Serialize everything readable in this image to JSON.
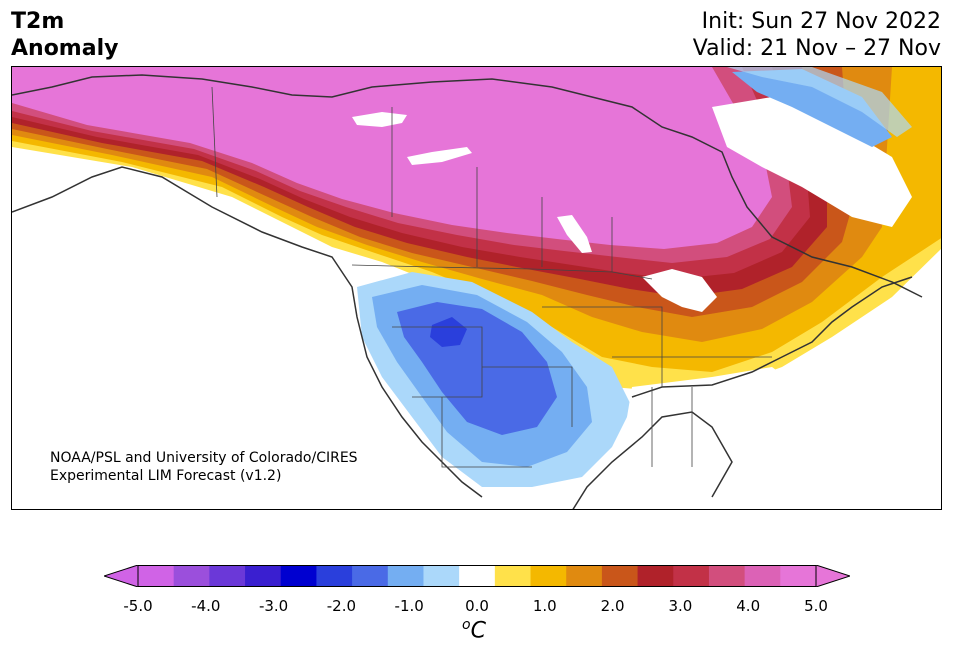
{
  "title_left": [
    "T2m",
    "Anomaly"
  ],
  "title_right": {
    "init": "Init: Sun 27 Nov 2022",
    "valid": "Valid: 21 Nov – 27 Nov"
  },
  "credit": {
    "line1": "NOAA/PSL and University of Colorado/CIRES",
    "line2": "Experimental LIM Forecast (v1.2)"
  },
  "colorbar": {
    "levels": [
      -5.0,
      -4.5,
      -4.0,
      -3.5,
      -3.0,
      -2.5,
      -2.0,
      -1.5,
      -1.0,
      -0.5,
      0.5,
      1.0,
      1.5,
      2.0,
      2.5,
      3.0,
      3.5,
      4.0,
      4.5,
      5.0
    ],
    "colors": [
      "#d063e6",
      "#9b4fdc",
      "#6b38d8",
      "#3a1fd0",
      "#0000d0",
      "#2a3fdc",
      "#4a6ae6",
      "#74aef2",
      "#abd8fa",
      "#ffffff",
      "#ffe14a",
      "#f4b800",
      "#e08a10",
      "#c9561a",
      "#b0222a",
      "#c23147",
      "#d24e7d",
      "#dc62b6",
      "#e675d8"
    ],
    "extend_min_color": "#d063e6",
    "extend_max_color": "#e675d8",
    "tick_labels": [
      "-5.0",
      "-4.0",
      "-3.0",
      "-2.0",
      "-1.0",
      "0.0",
      "1.0",
      "2.0",
      "3.0",
      "4.0",
      "5.0"
    ],
    "unit_sup": "o",
    "unit": "C"
  }
}
